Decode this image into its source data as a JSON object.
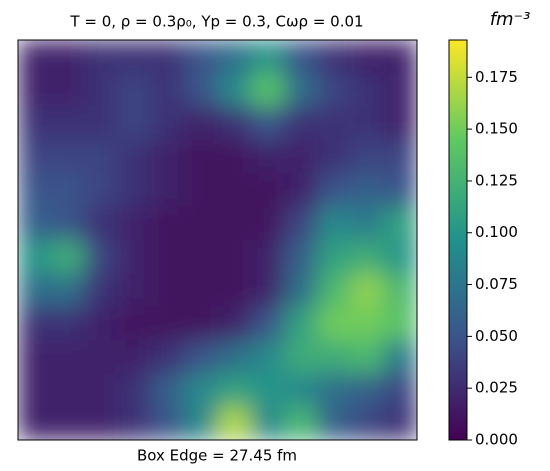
{
  "chart_data": {
    "type": "heatmap",
    "title": "T = 0, ρ = 0.3ρ₀, Yp = 0.3, Cωρ = 0.01",
    "x_label": "Box Edge = 27.45 fm",
    "colorbar_label": "fm⁻³",
    "colormap": [
      "#440154",
      "#3b528b",
      "#21918c",
      "#5ec962",
      "#fde725"
    ],
    "zlim": [
      0,
      0.193
    ],
    "zticks": [
      {
        "value": 0,
        "label": "0.000"
      },
      0.025,
      {
        "value": 0.05,
        "label": "0.050"
      },
      0.075,
      {
        "value": 0.1,
        "label": "0.100"
      },
      0.125,
      {
        "value": 0.15,
        "label": "0.150"
      },
      0.175
    ],
    "z": [
      [
        0.02,
        0.02,
        0.03,
        0.03,
        0.03,
        0.05,
        0.07,
        0.1,
        0.05,
        0.03,
        0.02,
        0.02
      ],
      [
        0.02,
        0.02,
        0.03,
        0.04,
        0.03,
        0.05,
        0.09,
        0.14,
        0.07,
        0.04,
        0.03,
        0.02
      ],
      [
        0.03,
        0.03,
        0.03,
        0.04,
        0.03,
        0.02,
        0.03,
        0.05,
        0.03,
        0.03,
        0.03,
        0.02
      ],
      [
        0.04,
        0.04,
        0.04,
        0.03,
        0.02,
        0.01,
        0.01,
        0.02,
        0.02,
        0.03,
        0.04,
        0.04
      ],
      [
        0.05,
        0.05,
        0.04,
        0.03,
        0.02,
        0.01,
        0.01,
        0.01,
        0.02,
        0.05,
        0.06,
        0.05
      ],
      [
        0.06,
        0.05,
        0.03,
        0.02,
        0.01,
        0.01,
        0.01,
        0.01,
        0.04,
        0.09,
        0.08,
        0.11
      ],
      [
        0.1,
        0.12,
        0.04,
        0.02,
        0.01,
        0.01,
        0.01,
        0.02,
        0.06,
        0.11,
        0.12,
        0.1
      ],
      [
        0.07,
        0.07,
        0.03,
        0.02,
        0.01,
        0.01,
        0.01,
        0.02,
        0.07,
        0.13,
        0.16,
        0.13
      ],
      [
        0.03,
        0.03,
        0.02,
        0.01,
        0.01,
        0.01,
        0.02,
        0.05,
        0.11,
        0.15,
        0.15,
        0.14
      ],
      [
        0.02,
        0.02,
        0.02,
        0.02,
        0.03,
        0.05,
        0.07,
        0.09,
        0.12,
        0.12,
        0.13,
        0.08
      ],
      [
        0.02,
        0.02,
        0.02,
        0.03,
        0.06,
        0.09,
        0.11,
        0.1,
        0.09,
        0.07,
        0.06,
        0.04
      ],
      [
        0.02,
        0.02,
        0.02,
        0.03,
        0.05,
        0.09,
        0.17,
        0.09,
        0.13,
        0.06,
        0.04,
        0.03
      ]
    ]
  }
}
